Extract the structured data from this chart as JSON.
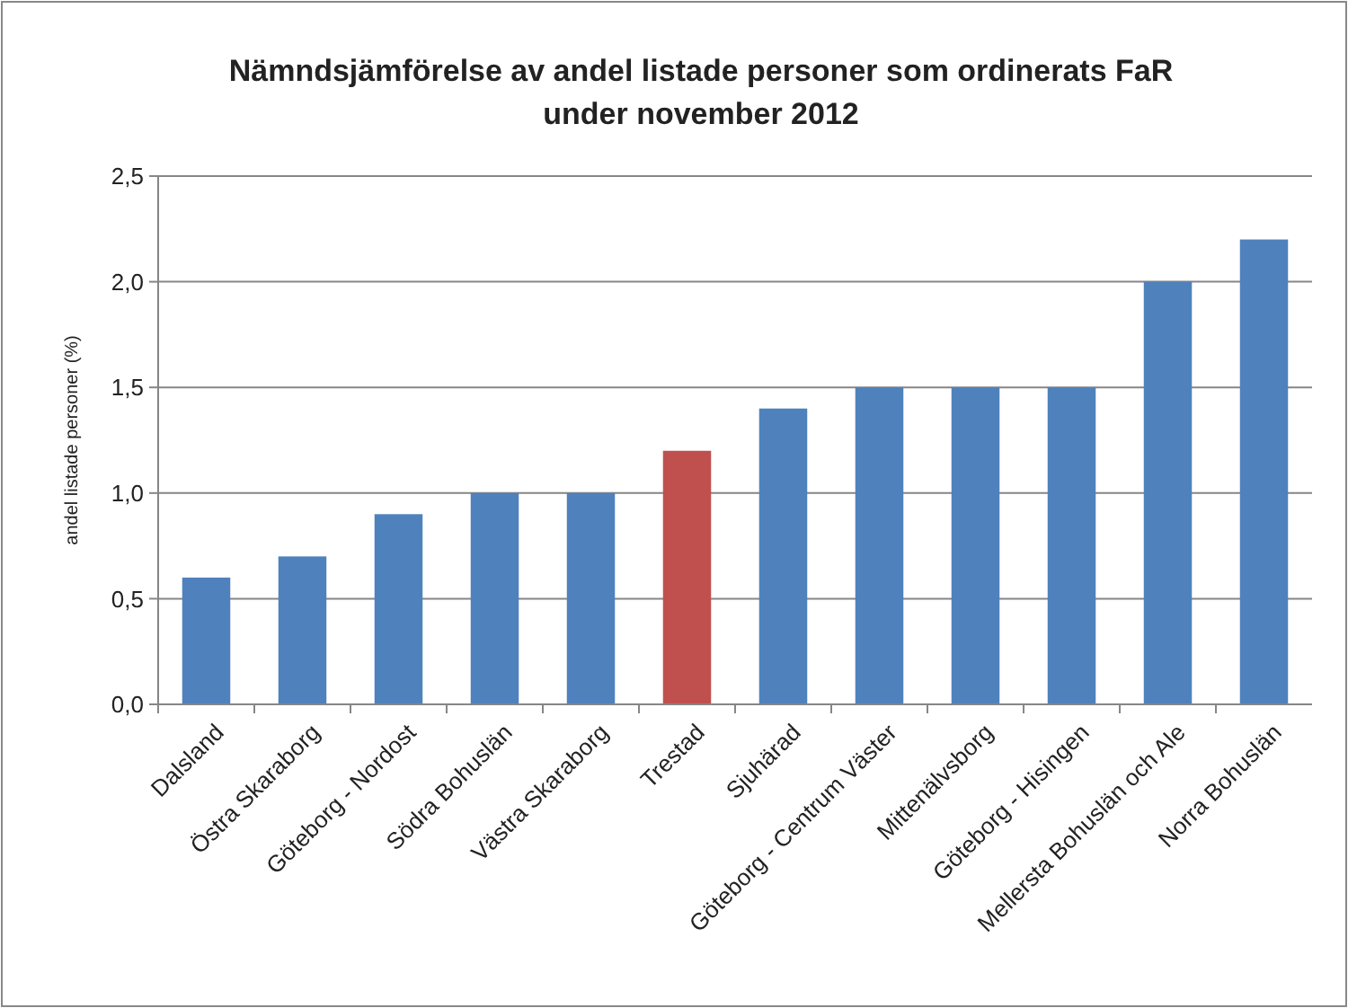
{
  "chart_data": {
    "type": "bar",
    "title": "Nämndsjämförelse av andel listade personer som ordinerats FaR under november 2012",
    "ylabel": "andel listade personer (%)",
    "categories": [
      "Dalsland",
      "Östra Skaraborg",
      "Göteborg - Nordost",
      "Södra Bohuslän",
      "Västra Skaraborg",
      "Trestad",
      "Sjuhärad",
      "Göteborg - Centrum Väster",
      "Mittenälvsborg",
      "Göteborg - Hisingen",
      "Mellersta Bohuslän och Ale",
      "Norra Bohuslän"
    ],
    "values": [
      0.6,
      0.7,
      0.9,
      1.0,
      1.0,
      1.2,
      1.4,
      1.5,
      1.5,
      1.5,
      2.0,
      2.2
    ],
    "colors": [
      "#4f81bd",
      "#4f81bd",
      "#4f81bd",
      "#4f81bd",
      "#4f81bd",
      "#c0504d",
      "#4f81bd",
      "#4f81bd",
      "#4f81bd",
      "#4f81bd",
      "#4f81bd",
      "#4f81bd"
    ],
    "ylim": [
      0,
      2.5
    ],
    "yticks": [
      {
        "value": 0,
        "label": "0,0"
      },
      {
        "value": 0.5,
        "label": "0,5"
      },
      {
        "value": 1,
        "label": "1,0"
      },
      {
        "value": 1.5,
        "label": "1,5"
      },
      {
        "value": 2,
        "label": "2,0"
      },
      {
        "value": 2.5,
        "label": "2,5"
      }
    ],
    "grid": "y"
  }
}
